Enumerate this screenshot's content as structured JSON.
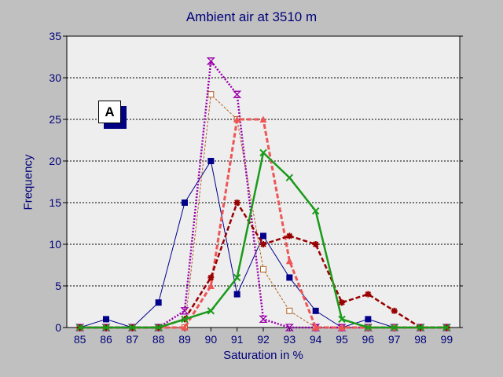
{
  "chart_data": {
    "type": "line",
    "title": "Ambient air  at 3510 m",
    "xlabel": "Saturation in %",
    "ylabel": "Frequency",
    "panel_label": "A",
    "x": [
      85,
      86,
      87,
      88,
      89,
      90,
      91,
      92,
      93,
      94,
      95,
      96,
      97,
      98,
      99
    ],
    "xlim": [
      84.5,
      99.5
    ],
    "ylim": [
      0,
      35
    ],
    "yticks": [
      0,
      5,
      10,
      15,
      20,
      25,
      30,
      35
    ],
    "grid": "horizontal dotted",
    "series": [
      {
        "values": [
          0,
          1,
          0,
          3,
          15,
          20,
          4,
          11,
          6,
          2,
          0,
          1,
          0,
          0,
          0
        ],
        "color": "#00008b",
        "dash": "",
        "width": 1,
        "marker": "filled-square"
      },
      {
        "values": [
          0,
          0,
          0,
          0,
          0,
          28,
          25,
          7,
          2,
          0,
          0,
          0,
          0,
          0,
          0
        ],
        "color": "#b06020",
        "dash": "3,2",
        "width": 1,
        "marker": "open-square"
      },
      {
        "values": [
          0,
          0,
          0,
          0,
          2,
          32,
          28,
          1,
          0,
          0,
          0,
          0,
          0,
          0,
          0
        ],
        "color": "#9900aa",
        "dash": "2,2",
        "width": 2.5,
        "marker": "hourglass"
      },
      {
        "values": [
          0,
          0,
          0,
          0,
          0,
          5,
          25,
          25,
          8,
          0,
          0,
          0,
          0,
          0,
          0
        ],
        "color": "#ee5555",
        "dash": "6,3",
        "width": 3,
        "marker": "triangle"
      },
      {
        "values": [
          0,
          0,
          0,
          0,
          1,
          6,
          15,
          10,
          11,
          10,
          3,
          4,
          2,
          0,
          0
        ],
        "color": "#990000",
        "dash": "6,3",
        "width": 2.5,
        "marker": "star"
      },
      {
        "values": [
          0,
          0,
          0,
          0,
          1,
          2,
          6,
          21,
          18,
          14,
          1,
          0,
          0,
          0,
          0
        ],
        "color": "#1a9a1a",
        "dash": "",
        "width": 2.5,
        "marker": "x"
      }
    ]
  }
}
